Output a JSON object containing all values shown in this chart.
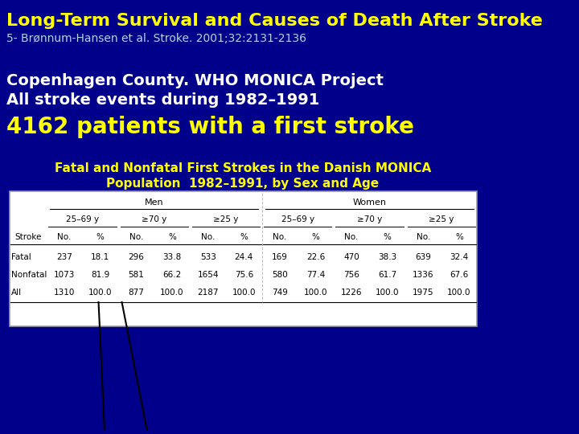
{
  "bg_color": "#00008B",
  "title_main": "Long-Term Survival and Causes of Death After Stroke",
  "title_sub": "5- Brønnum-Hansen et al. Stroke. 2001;32:2131-2136",
  "text1": "Copenhagen County. WHO MONICA Project",
  "text2": "All stroke events during 1982–1991",
  "text3": "4162 patients with a first stroke",
  "table_title1": "Fatal and Nonfatal First Strokes in the Danish MONICA",
  "table_title2": "Population  1982–1991, by Sex and Age",
  "rows": [
    [
      "Fatal",
      "237",
      "18.1",
      "296",
      "33.8",
      "533",
      "24.4",
      "169",
      "22.6",
      "470",
      "38.3",
      "639",
      "32.4"
    ],
    [
      "Nonfatal",
      "1073",
      "81.9",
      "581",
      "66.2",
      "1654",
      "75.6",
      "580",
      "77.4",
      "756",
      "61.7",
      "1336",
      "67.6"
    ],
    [
      "All",
      "1310",
      "100.0",
      "877",
      "100.0",
      "2187",
      "100.0",
      "749",
      "100.0",
      "1226",
      "100.0",
      "1975",
      "100.0"
    ]
  ],
  "title_color": "#FFFF00",
  "subtitle_color": "#ADD8E6",
  "white_text_color": "#FFFFFF",
  "yellow_text_color": "#FFFF00",
  "table_bg": "#FFFFFF",
  "age_labels": [
    "25–69 y",
    "≥70 y",
    "≥25 y",
    "25–69 y",
    "≥70 y",
    "≥25 y"
  ]
}
